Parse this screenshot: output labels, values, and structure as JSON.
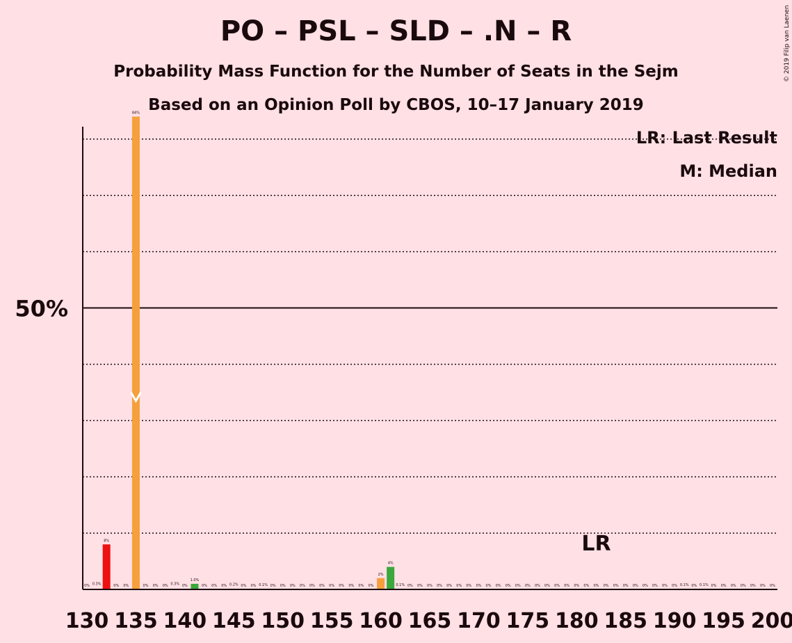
{
  "header": {
    "title": "PO – PSL – SLD – .N – R",
    "subtitle": "Probability Mass Function for the Number of Seats in the Sejm",
    "subtitle2": "Based on an Opinion Poll by CBOS, 10–17 January 2019",
    "copyright": "© 2019 Filip van Laenen"
  },
  "legend": {
    "last_result": "LR: Last Result",
    "median": "M: Median"
  },
  "chart_data": {
    "type": "bar",
    "title": "PO – PSL – SLD – .N – R",
    "xlim": [
      130,
      200
    ],
    "ylim": [
      0,
      90
    ],
    "x_ticks": [
      "130",
      "135",
      "140",
      "145",
      "150",
      "155",
      "160",
      "165",
      "170",
      "175",
      "180",
      "185",
      "190",
      "195",
      "200"
    ],
    "y_ticks": [
      {
        "value": 50,
        "label": "50%"
      }
    ],
    "gridlines": [
      10,
      20,
      30,
      40,
      60,
      70,
      80
    ],
    "median_seat": 135,
    "last_result_seat": 182,
    "last_result_label": "LR",
    "colors": {
      "above_last_result": "#f5a03c",
      "highlight_green": "#3aa83a",
      "highlight_red": "#ee1111",
      "median_marker": "#ffffff"
    },
    "bars": [
      {
        "x": 130,
        "value": 0,
        "label": "0%"
      },
      {
        "x": 131,
        "value": 0.3,
        "label": "0.3%"
      },
      {
        "x": 132,
        "value": 8,
        "label": "8%",
        "color": "red"
      },
      {
        "x": 133,
        "value": 0,
        "label": "0%"
      },
      {
        "x": 134,
        "value": 0,
        "label": "0%"
      },
      {
        "x": 135,
        "value": 84,
        "label": "84%",
        "color": "orange"
      },
      {
        "x": 136,
        "value": 0,
        "label": "0%"
      },
      {
        "x": 137,
        "value": 0,
        "label": "0%"
      },
      {
        "x": 138,
        "value": 0,
        "label": "0%"
      },
      {
        "x": 139,
        "value": 0.3,
        "label": "0.3%"
      },
      {
        "x": 140,
        "value": 0,
        "label": "0%"
      },
      {
        "x": 141,
        "value": 1.0,
        "label": "1.0%",
        "color": "green"
      },
      {
        "x": 142,
        "value": 0,
        "label": "0%"
      },
      {
        "x": 143,
        "value": 0,
        "label": "0%"
      },
      {
        "x": 144,
        "value": 0,
        "label": "0%"
      },
      {
        "x": 145,
        "value": 0.2,
        "label": "0.2%"
      },
      {
        "x": 146,
        "value": 0,
        "label": "0%"
      },
      {
        "x": 147,
        "value": 0,
        "label": "0%"
      },
      {
        "x": 148,
        "value": 0.1,
        "label": "0.1%"
      },
      {
        "x": 149,
        "value": 0,
        "label": "0%"
      },
      {
        "x": 150,
        "value": 0,
        "label": "0%"
      },
      {
        "x": 151,
        "value": 0,
        "label": "0%"
      },
      {
        "x": 152,
        "value": 0,
        "label": "0%"
      },
      {
        "x": 153,
        "value": 0,
        "label": "0%"
      },
      {
        "x": 154,
        "value": 0,
        "label": "0%"
      },
      {
        "x": 155,
        "value": 0,
        "label": "0%"
      },
      {
        "x": 156,
        "value": 0,
        "label": "0%"
      },
      {
        "x": 157,
        "value": 0,
        "label": "0%"
      },
      {
        "x": 158,
        "value": 0,
        "label": "0%"
      },
      {
        "x": 159,
        "value": 0,
        "label": "0%"
      },
      {
        "x": 160,
        "value": 2,
        "label": "2%",
        "color": "orange"
      },
      {
        "x": 161,
        "value": 4,
        "label": "4%",
        "color": "green"
      },
      {
        "x": 162,
        "value": 0.1,
        "label": "0.1%"
      },
      {
        "x": 163,
        "value": 0,
        "label": "0%"
      },
      {
        "x": 164,
        "value": 0,
        "label": "0%"
      },
      {
        "x": 165,
        "value": 0,
        "label": "0%"
      },
      {
        "x": 166,
        "value": 0,
        "label": "0%"
      },
      {
        "x": 167,
        "value": 0,
        "label": "0%"
      },
      {
        "x": 168,
        "value": 0,
        "label": "0%"
      },
      {
        "x": 169,
        "value": 0,
        "label": "0%"
      },
      {
        "x": 170,
        "value": 0,
        "label": "0%"
      },
      {
        "x": 171,
        "value": 0,
        "label": "0%"
      },
      {
        "x": 172,
        "value": 0,
        "label": "0%"
      },
      {
        "x": 173,
        "value": 0,
        "label": "0%"
      },
      {
        "x": 174,
        "value": 0,
        "label": "0%"
      },
      {
        "x": 175,
        "value": 0,
        "label": "0%"
      },
      {
        "x": 176,
        "value": 0,
        "label": "0%"
      },
      {
        "x": 177,
        "value": 0,
        "label": "0%"
      },
      {
        "x": 178,
        "value": 0,
        "label": "0%"
      },
      {
        "x": 179,
        "value": 0,
        "label": "0%"
      },
      {
        "x": 180,
        "value": 0,
        "label": "0%"
      },
      {
        "x": 181,
        "value": 0,
        "label": "0%"
      },
      {
        "x": 182,
        "value": 0,
        "label": "0%"
      },
      {
        "x": 183,
        "value": 0,
        "label": "0%"
      },
      {
        "x": 184,
        "value": 0,
        "label": "0%"
      },
      {
        "x": 185,
        "value": 0,
        "label": "0%"
      },
      {
        "x": 186,
        "value": 0,
        "label": "0%"
      },
      {
        "x": 187,
        "value": 0,
        "label": "0%"
      },
      {
        "x": 188,
        "value": 0,
        "label": "0%"
      },
      {
        "x": 189,
        "value": 0,
        "label": "0%"
      },
      {
        "x": 190,
        "value": 0,
        "label": "0%"
      },
      {
        "x": 191,
        "value": 0.1,
        "label": "0.1%"
      },
      {
        "x": 192,
        "value": 0,
        "label": "0%"
      },
      {
        "x": 193,
        "value": 0.1,
        "label": "0.1%"
      },
      {
        "x": 194,
        "value": 0,
        "label": "0%"
      },
      {
        "x": 195,
        "value": 0,
        "label": "0%"
      },
      {
        "x": 196,
        "value": 0,
        "label": "0%"
      },
      {
        "x": 197,
        "value": 0,
        "label": "0%"
      },
      {
        "x": 198,
        "value": 0,
        "label": "0%"
      },
      {
        "x": 199,
        "value": 0,
        "label": "0%"
      },
      {
        "x": 200,
        "value": 0,
        "label": "0%"
      }
    ]
  }
}
